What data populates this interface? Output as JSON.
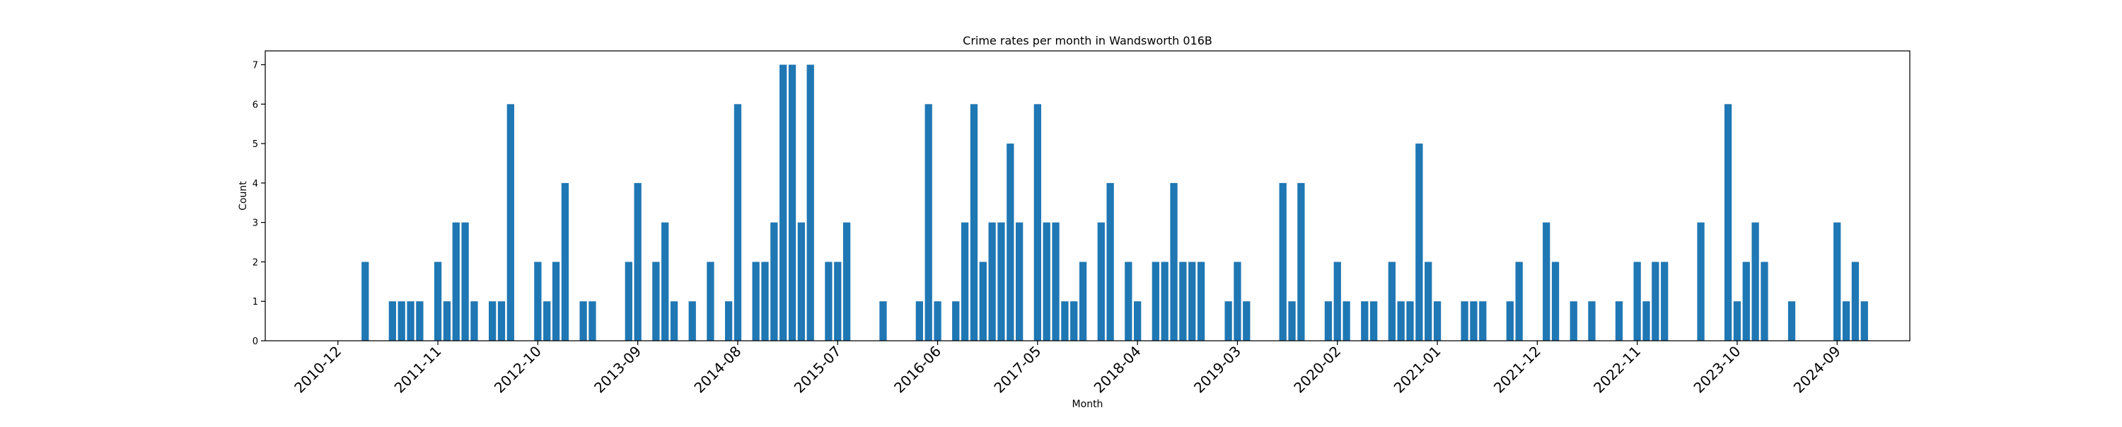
{
  "chart_data": {
    "type": "bar",
    "title": "Crime rates per month in Wandsworth 016B",
    "xlabel": "Month",
    "ylabel": "Count",
    "ylim": [
      0,
      7.35
    ],
    "yticks": [
      0,
      1,
      2,
      3,
      4,
      5,
      6,
      7
    ],
    "xlim": [
      "2010-04",
      "2025-05"
    ],
    "xticks": [
      "2010-12",
      "2011-11",
      "2012-10",
      "2013-09",
      "2014-08",
      "2015-07",
      "2016-06",
      "2017-05",
      "2018-04",
      "2019-03",
      "2020-02",
      "2021-01",
      "2021-12",
      "2022-11",
      "2023-10",
      "2024-09"
    ],
    "bar_color": "#1f77b4",
    "grid": false,
    "series": [
      {
        "x": [
          "2011-03",
          "2011-06",
          "2011-07",
          "2011-08",
          "2011-09",
          "2011-11",
          "2011-12",
          "2012-01",
          "2012-02",
          "2012-03",
          "2012-05",
          "2012-06",
          "2012-07",
          "2012-10",
          "2012-11",
          "2012-12",
          "2013-01",
          "2013-03",
          "2013-04",
          "2013-08",
          "2013-09",
          "2013-11",
          "2013-12",
          "2014-01",
          "2014-03",
          "2014-05",
          "2014-07",
          "2014-08",
          "2014-10",
          "2014-11",
          "2014-12",
          "2015-01",
          "2015-02",
          "2015-03",
          "2015-04",
          "2015-06",
          "2015-07",
          "2015-08",
          "2015-12",
          "2016-04",
          "2016-05",
          "2016-06",
          "2016-08",
          "2016-09",
          "2016-10",
          "2016-11",
          "2016-12",
          "2017-01",
          "2017-02",
          "2017-03",
          "2017-05",
          "2017-06",
          "2017-07",
          "2017-08",
          "2017-09",
          "2017-10",
          "2017-12",
          "2018-01",
          "2018-03",
          "2018-04",
          "2018-06",
          "2018-07",
          "2018-08",
          "2018-09",
          "2018-10",
          "2018-11",
          "2019-02",
          "2019-03",
          "2019-04",
          "2019-08",
          "2019-09",
          "2019-10",
          "2020-01",
          "2020-02",
          "2020-03",
          "2020-05",
          "2020-06",
          "2020-08",
          "2020-09",
          "2020-10",
          "2020-11",
          "2020-12",
          "2021-01",
          "2021-04",
          "2021-05",
          "2021-06",
          "2021-09",
          "2021-10",
          "2022-01",
          "2022-02",
          "2022-04",
          "2022-06",
          "2022-09",
          "2022-11",
          "2022-12",
          "2023-01",
          "2023-02",
          "2023-06",
          "2023-09",
          "2023-10",
          "2023-11",
          "2023-12",
          "2024-01",
          "2024-04",
          "2024-09",
          "2024-10",
          "2024-11",
          "2024-12"
        ],
        "values": [
          2,
          1,
          1,
          1,
          1,
          2,
          1,
          3,
          3,
          1,
          1,
          1,
          6,
          2,
          1,
          2,
          4,
          1,
          1,
          2,
          4,
          2,
          3,
          1,
          1,
          2,
          1,
          6,
          2,
          2,
          3,
          7,
          7,
          3,
          7,
          2,
          2,
          3,
          1,
          1,
          6,
          1,
          1,
          3,
          6,
          2,
          3,
          3,
          5,
          3,
          6,
          3,
          3,
          1,
          1,
          2,
          3,
          4,
          2,
          1,
          2,
          2,
          4,
          2,
          2,
          2,
          1,
          2,
          1,
          4,
          1,
          4,
          1,
          2,
          1,
          1,
          1,
          2,
          1,
          1,
          5,
          2,
          1,
          1,
          1,
          1,
          1,
          2,
          3,
          2,
          1,
          1,
          1,
          2,
          1,
          2,
          2,
          3,
          6,
          1,
          2,
          3,
          2,
          1,
          3,
          1,
          2,
          1
        ]
      }
    ]
  }
}
